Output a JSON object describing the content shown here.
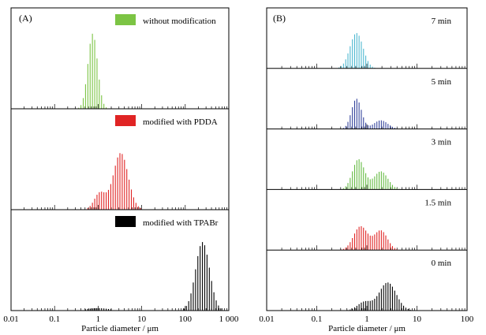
{
  "figure": {
    "panel_a_letter": "(A)",
    "panel_b_letter": "(B)"
  },
  "chart_data": [
    {
      "type": "bar",
      "panel": "(A)",
      "xlabel": "Particle diameter / μm",
      "xscale": "log",
      "xlim": [
        0.01,
        1000
      ],
      "x_ticks": [
        0.01,
        0.1,
        1,
        10,
        100,
        1000
      ],
      "x_tick_labels": [
        "0.01",
        "0.1",
        "1",
        "10",
        "100",
        "1 000"
      ],
      "ylabel": "",
      "legend_placement": "top-right of each sub-panel",
      "series": [
        {
          "name": "without modification",
          "color": "#7cc444",
          "legend_swatch": true,
          "baseline_range": [
            0.01,
            1000
          ],
          "peaks": [
            {
              "center": 0.75,
              "sigma_log10": 0.11,
              "height": 0.9
            }
          ],
          "ylim": [
            0,
            1
          ]
        },
        {
          "name": "modified with PDDA",
          "color": "#e02424",
          "legend_swatch": true,
          "baseline_range": [
            0.01,
            1000
          ],
          "peaks": [
            {
              "center": 3.3,
              "sigma_log10": 0.17,
              "height": 0.68
            },
            {
              "center": 1.1,
              "sigma_log10": 0.13,
              "height": 0.2
            }
          ],
          "ylim": [
            0,
            1
          ]
        },
        {
          "name": "modified with TPABr",
          "color": "#000000",
          "legend_swatch": true,
          "baseline_range": [
            0.01,
            1000
          ],
          "peaks": [
            {
              "center": 250,
              "sigma_log10": 0.16,
              "height": 0.82
            },
            {
              "center": 1,
              "sigma_log10": 0.25,
              "height": 0.03
            }
          ],
          "ylim": [
            0,
            1
          ]
        }
      ]
    },
    {
      "type": "bar",
      "panel": "(B)",
      "xlabel": "Particle diameter / μm",
      "xscale": "log",
      "xlim": [
        0.01,
        100
      ],
      "x_ticks": [
        0.01,
        0.1,
        1,
        10,
        100
      ],
      "x_tick_labels": [
        "0.01",
        "0.1",
        "1",
        "10",
        "100"
      ],
      "ylabel": "",
      "series": [
        {
          "name": "7 min",
          "color": "#4fb8d0",
          "baseline_range": [
            0.01,
            100
          ],
          "peaks": [
            {
              "center": 0.62,
              "sigma_log10": 0.13,
              "height": 0.82
            }
          ],
          "ylim": [
            0,
            1
          ]
        },
        {
          "name": "5 min",
          "color": "#34449c",
          "baseline_range": [
            0.01,
            100
          ],
          "peaks": [
            {
              "center": 0.62,
              "sigma_log10": 0.1,
              "height": 0.7
            },
            {
              "center": 1.9,
              "sigma_log10": 0.14,
              "height": 0.2
            }
          ],
          "ylim": [
            0,
            1
          ]
        },
        {
          "name": "3 min",
          "color": "#66bb44",
          "baseline_range": [
            0.01,
            100
          ],
          "peaks": [
            {
              "center": 0.68,
              "sigma_log10": 0.12,
              "height": 0.7
            },
            {
              "center": 1.9,
              "sigma_log10": 0.14,
              "height": 0.42
            }
          ],
          "ylim": [
            0,
            1
          ]
        },
        {
          "name": "1.5 min",
          "color": "#e02424",
          "baseline_range": [
            0.01,
            100
          ],
          "peaks": [
            {
              "center": 0.75,
              "sigma_log10": 0.14,
              "height": 0.55
            },
            {
              "center": 1.9,
              "sigma_log10": 0.13,
              "height": 0.45
            }
          ],
          "ylim": [
            0,
            1
          ]
        },
        {
          "name": "0 min",
          "color": "#000000",
          "baseline_range": [
            0.01,
            100
          ],
          "peaks": [
            {
              "center": 2.6,
              "sigma_log10": 0.17,
              "height": 0.65
            },
            {
              "center": 0.9,
              "sigma_log10": 0.14,
              "height": 0.2
            }
          ],
          "ylim": [
            0,
            1
          ]
        }
      ]
    }
  ]
}
